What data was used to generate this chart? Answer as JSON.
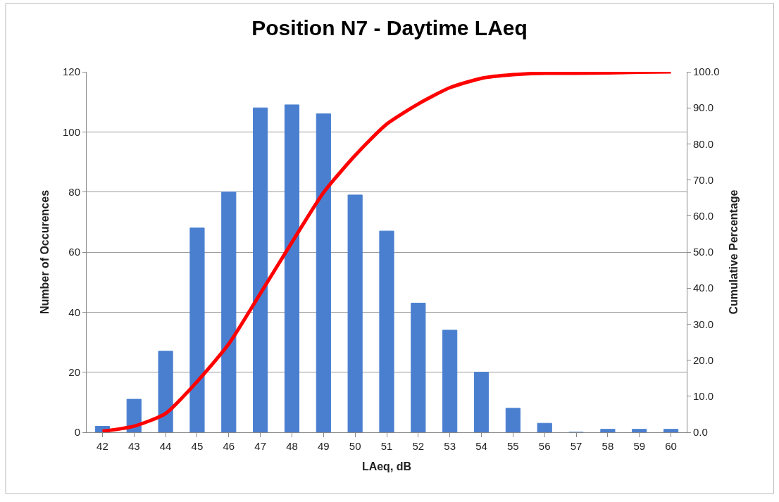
{
  "chart_data": {
    "type": "bar",
    "title": "Position N7 - Daytime LAeq",
    "xlabel": "LAeq, dB",
    "ylabel": "Number of Occurences",
    "y2label": "Cumulative Percentage",
    "categories": [
      "42",
      "43",
      "44",
      "45",
      "46",
      "47",
      "48",
      "49",
      "50",
      "51",
      "52",
      "53",
      "54",
      "55",
      "56",
      "57",
      "58",
      "59",
      "60"
    ],
    "series": [
      {
        "color": "#4a7fd0",
        "values": [
          2,
          11,
          27,
          68,
          80,
          108,
          109,
          106,
          79,
          67,
          43,
          34,
          20,
          8,
          3,
          0,
          1,
          1,
          1
        ]
      },
      {
        "type": "line",
        "axis": "y2",
        "color": "#ff0000",
        "line_style": "solid",
        "values": [
          0.3,
          1.7,
          5.2,
          14.1,
          24.5,
          38.5,
          52.7,
          66.5,
          76.8,
          85.5,
          91.1,
          95.6,
          98.2,
          99.2,
          99.6,
          99.6,
          99.7,
          99.9,
          100.0
        ]
      }
    ],
    "ylim": [
      0,
      120
    ],
    "yticks": [
      0,
      20,
      40,
      60,
      80,
      100,
      120
    ],
    "y2lim": [
      0,
      100
    ],
    "y2ticks": [
      {
        "value": 0,
        "label": "0.0"
      },
      {
        "value": 10,
        "label": "10.0"
      },
      {
        "value": 20,
        "label": "20.0"
      },
      {
        "value": 30,
        "label": "30.0"
      },
      {
        "value": 40,
        "label": "40.0"
      },
      {
        "value": 50,
        "label": "50.0"
      },
      {
        "value": 60,
        "label": "60.0"
      },
      {
        "value": 70,
        "label": "70.0"
      },
      {
        "value": 80,
        "label": "80.0"
      },
      {
        "value": 90,
        "label": "90.0"
      },
      {
        "value": 100,
        "label": "100.0"
      }
    ],
    "grid": "y",
    "legend": false,
    "marker": "none"
  }
}
